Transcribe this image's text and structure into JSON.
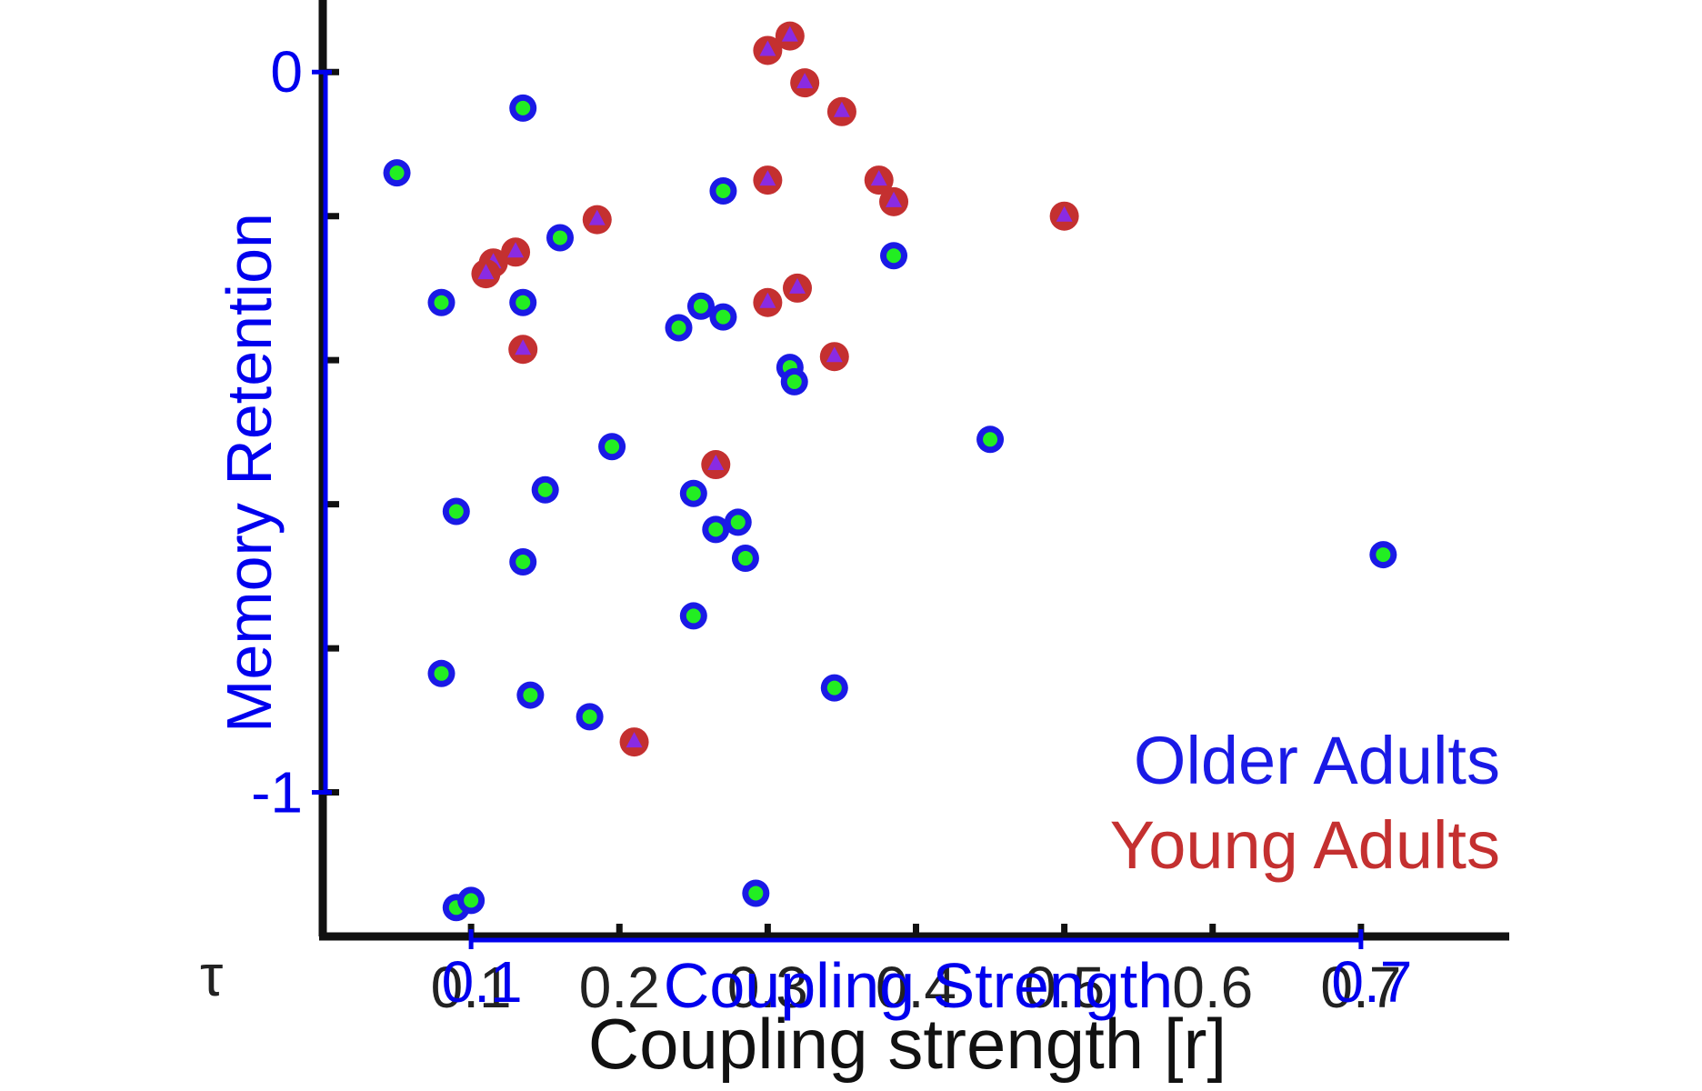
{
  "chart_data": {
    "type": "scatter",
    "title": "",
    "xlabel": "Coupling strength [r]",
    "ylabel": "",
    "xlim": [
      0.0,
      0.8
    ],
    "ylim": [
      -1.2,
      0.1
    ],
    "x_ticks": [
      "0.1",
      "0.2",
      "0.3",
      "0.4",
      "0.5",
      "0.6",
      "0.7"
    ],
    "x_tick_values": [
      0.1,
      0.2,
      0.3,
      0.4,
      0.5,
      0.6,
      0.7
    ],
    "y_tick_values": [
      0,
      -0.2,
      -0.4,
      -0.6,
      -0.8,
      -1
    ],
    "corner_label": "τ",
    "overlay": {
      "x_title": "Coupling Strength",
      "y_title": "Memory Retention",
      "x_tick_labels": [
        {
          "value": 0.1,
          "label": "0.1"
        },
        {
          "value": 0.7,
          "label": "0.7"
        }
      ],
      "y_tick_labels": [
        {
          "value": 0,
          "label": "0"
        },
        {
          "value": -1,
          "label": "-1"
        }
      ],
      "color": "#0000ee"
    },
    "legend": {
      "placement": "bottom-right"
    },
    "series": [
      {
        "name": "Older Adults",
        "color": "#1a1ae6",
        "marker_fill": "#22ee22",
        "points": [
          [
            0.05,
            -0.14
          ],
          [
            0.135,
            -0.05
          ],
          [
            0.08,
            -0.32
          ],
          [
            0.135,
            -0.32
          ],
          [
            0.16,
            -0.23
          ],
          [
            0.24,
            -0.355
          ],
          [
            0.255,
            -0.325
          ],
          [
            0.27,
            -0.34
          ],
          [
            0.27,
            -0.165
          ],
          [
            0.315,
            -0.41
          ],
          [
            0.318,
            -0.43
          ],
          [
            0.385,
            -0.255
          ],
          [
            0.195,
            -0.52
          ],
          [
            0.09,
            -0.61
          ],
          [
            0.15,
            -0.58
          ],
          [
            0.25,
            -0.585
          ],
          [
            0.265,
            -0.635
          ],
          [
            0.28,
            -0.625
          ],
          [
            0.285,
            -0.675
          ],
          [
            0.135,
            -0.68
          ],
          [
            0.25,
            -0.755
          ],
          [
            0.08,
            -0.835
          ],
          [
            0.14,
            -0.865
          ],
          [
            0.18,
            -0.895
          ],
          [
            0.345,
            -0.855
          ],
          [
            0.45,
            -0.51
          ],
          [
            0.715,
            -0.67
          ],
          [
            0.09,
            -1.16
          ],
          [
            0.1,
            -1.15
          ],
          [
            0.292,
            -1.14
          ]
        ]
      },
      {
        "name": "Young Adults",
        "color": "#c43030",
        "marker_fill": "#8a2be2",
        "points": [
          [
            0.3,
            0.03
          ],
          [
            0.315,
            0.05
          ],
          [
            0.325,
            -0.015
          ],
          [
            0.35,
            -0.055
          ],
          [
            0.3,
            -0.15
          ],
          [
            0.375,
            -0.15
          ],
          [
            0.385,
            -0.18
          ],
          [
            0.5,
            -0.2
          ],
          [
            0.185,
            -0.205
          ],
          [
            0.115,
            -0.265
          ],
          [
            0.13,
            -0.25
          ],
          [
            0.11,
            -0.28
          ],
          [
            0.3,
            -0.32
          ],
          [
            0.32,
            -0.3
          ],
          [
            0.135,
            -0.385
          ],
          [
            0.345,
            -0.395
          ],
          [
            0.265,
            -0.545
          ],
          [
            0.21,
            -0.93
          ]
        ]
      }
    ]
  }
}
